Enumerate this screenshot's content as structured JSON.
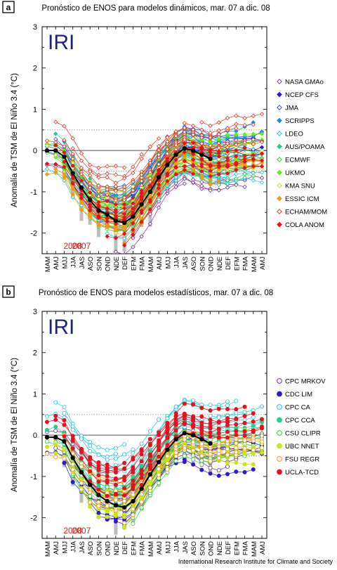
{
  "footer": "International Research Institute for Climate and Society",
  "chart_data": [
    {
      "panel_letter": "a",
      "type": "line",
      "title": "Pronóstico de ENOS para modelos dinámicos, mar. 07 a dic. 08",
      "logo": "IRI",
      "ylabel": "Anomalía de TSM de El Niño 3.4 (°C)",
      "xlabel": "",
      "ylim": [
        -2.5,
        3
      ],
      "yticks": [
        -2,
        -1,
        0,
        1,
        2,
        3
      ],
      "reference_lines": [
        0.5,
        -0.5
      ],
      "x_ticklabels": [
        "MAM",
        "AMJ",
        "MJJ",
        "JJA",
        "JAS",
        "ASO",
        "SON",
        "OND",
        "NDE",
        "DEF",
        "EFM",
        "FMA",
        "MAM",
        "AMJ",
        "MJJ",
        "JJA",
        "JAS",
        "ASO",
        "SON",
        "OND",
        "NDE",
        "DEF",
        "EFM",
        "FMA",
        "MAM",
        "AMJ"
      ],
      "year_labels": [
        {
          "text": "2007",
          "at": "JAS"
        },
        {
          "text": "2008",
          "at": "JJA"
        }
      ],
      "observed": {
        "name": "",
        "values": [
          0.0,
          0.0,
          -0.15,
          -0.55,
          -0.9,
          -1.2,
          -1.45,
          -1.55,
          -1.7,
          -1.75,
          -1.6,
          -1.3,
          -1.0,
          -0.65,
          -0.35,
          -0.1,
          0.05,
          0.0,
          -0.1,
          -0.2
        ]
      },
      "models": [
        {
          "name": "NASA GMAo",
          "color": "#7b3294",
          "marker": "diamond-open"
        },
        {
          "name": "NCEP CFS",
          "color": "#2a1bd1",
          "marker": "diamond"
        },
        {
          "name": "JMA",
          "color": "#2f4fe0",
          "marker": "diamond-open"
        },
        {
          "name": "SCRIPPS",
          "color": "#1a8fe8",
          "marker": "diamond"
        },
        {
          "name": "LDEO",
          "color": "#18c8d8",
          "marker": "diamond-open"
        },
        {
          "name": "AUS/POAMA",
          "color": "#1fd08a",
          "marker": "diamond"
        },
        {
          "name": "ECMWF",
          "color": "#33cc33",
          "marker": "diamond-open"
        },
        {
          "name": "UKMO",
          "color": "#66ee11",
          "marker": "diamond"
        },
        {
          "name": "KMA SNU",
          "color": "#c9e619",
          "marker": "diamond-open"
        },
        {
          "name": "ESSIC ICM",
          "color": "#f29a11",
          "marker": "diamond"
        },
        {
          "name": "ECHAM/MOM",
          "color": "#e8321e",
          "marker": "diamond-open"
        },
        {
          "name": "COLA ANOM",
          "color": "#e8101e",
          "marker": "diamond"
        }
      ]
    },
    {
      "panel_letter": "b",
      "type": "line",
      "title": "Pronóstico de ENOS para modelos estadísticos, mar. 07 a dic. 08",
      "logo": "IRI",
      "ylabel": "Anomalía de TSM de El Niño 3.4 (°C)",
      "xlabel": "",
      "ylim": [
        -2.5,
        3
      ],
      "yticks": [
        -2,
        -1,
        0,
        1,
        2,
        3
      ],
      "reference_lines": [
        0.5,
        -0.5
      ],
      "x_ticklabels": [
        "MAM",
        "AMJ",
        "MJJ",
        "JJA",
        "JAS",
        "ASO",
        "SON",
        "OND",
        "NDE",
        "DEF",
        "EFM",
        "FMA",
        "MAM",
        "AMJ",
        "MJJ",
        "JJA",
        "JAS",
        "ASO",
        "SON",
        "OND",
        "NDE",
        "DEF",
        "EFM",
        "FMA",
        "MAM",
        "AMJ"
      ],
      "year_labels": [
        {
          "text": "2007",
          "at": "JAS"
        },
        {
          "text": "2008",
          "at": "JJA"
        }
      ],
      "observed": {
        "name": "",
        "values": [
          -0.05,
          -0.05,
          -0.15,
          -0.55,
          -0.9,
          -1.2,
          -1.45,
          -1.6,
          -1.7,
          -1.75,
          -1.6,
          -1.3,
          -0.95,
          -0.65,
          -0.35,
          -0.1,
          0.05,
          0.0,
          -0.1,
          -0.2
        ]
      },
      "models": [
        {
          "name": "CPC MRKOV",
          "color": "#7b3294",
          "marker": "circle-open"
        },
        {
          "name": "CDC LIM",
          "color": "#2a1bd1",
          "marker": "circle"
        },
        {
          "name": "CPC CA",
          "color": "#18c8d8",
          "marker": "circle-open"
        },
        {
          "name": "CPC CCA",
          "color": "#1fd08a",
          "marker": "circle"
        },
        {
          "name": "CSU CLIPR",
          "color": "#33cc33",
          "marker": "circle-open"
        },
        {
          "name": "UBC NNET",
          "color": "#c9e619",
          "marker": "circle"
        },
        {
          "name": "FSU REGR",
          "color": "#f29a11",
          "marker": "circle-open"
        },
        {
          "name": "UCLA-TCD",
          "color": "#e8101e",
          "marker": "circle"
        }
      ]
    }
  ]
}
